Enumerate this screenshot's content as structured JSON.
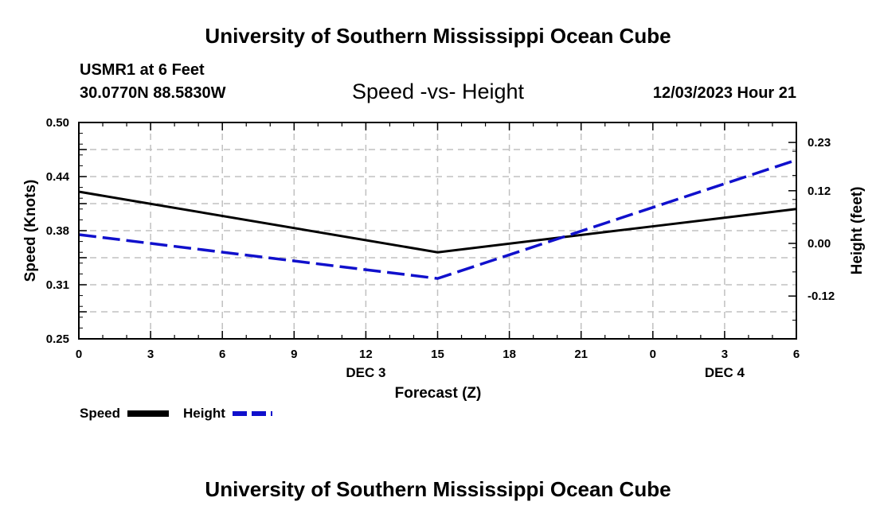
{
  "header": {
    "title": "University of Southern Mississippi Ocean Cube",
    "station": "USMR1 at 6 Feet",
    "coordinates": "30.0770N  88.5830W",
    "date_hour": "12/03/2023 Hour 21",
    "footer_title": "University of Southern Mississippi Ocean Cube"
  },
  "legend": {
    "speed_label": "Speed",
    "height_label": "Height"
  },
  "colors": {
    "speed": "#000000",
    "height": "#1010cc",
    "grid": "#c0c0c0"
  },
  "chart_data": {
    "type": "line",
    "title": "Speed -vs- Height",
    "xlabel": "Forecast (Z)",
    "ylabel_left": "Speed (Knots)",
    "ylabel_right": "Height (feet)",
    "x_ticks": [
      "0",
      "3",
      "6",
      "9",
      "12",
      "15",
      "18",
      "21",
      "0",
      "3",
      "6"
    ],
    "x_hours": [
      0,
      3,
      6,
      9,
      12,
      15,
      18,
      21,
      24,
      27,
      30
    ],
    "day_labels": [
      {
        "label": "DEC 3",
        "hour": 12
      },
      {
        "label": "DEC 4",
        "hour": 27
      }
    ],
    "xlim": [
      0,
      30
    ],
    "ylim_left": [
      0.25,
      0.5
    ],
    "yticks_left": [
      "0.50",
      "0.44",
      "0.38",
      "0.31",
      "0.25"
    ],
    "yticks_left_values": [
      0.5,
      0.4375,
      0.375,
      0.3125,
      0.25
    ],
    "ylim_right": [
      -0.2175,
      0.2755
    ],
    "yticks_right": [
      "0.23",
      "0.12",
      "0.00",
      "-0.12"
    ],
    "yticks_right_values": [
      0.23,
      0.12,
      0.0,
      -0.12
    ],
    "series": [
      {
        "name": "Speed",
        "axis": "left",
        "style": "solid",
        "x": [
          0,
          15,
          24,
          30
        ],
        "values": [
          0.42,
          0.35,
          0.38,
          0.4
        ]
      },
      {
        "name": "Height",
        "axis": "right",
        "style": "dashed",
        "x": [
          0,
          15,
          30
        ],
        "values": [
          0.02,
          -0.08,
          0.19
        ]
      }
    ]
  }
}
